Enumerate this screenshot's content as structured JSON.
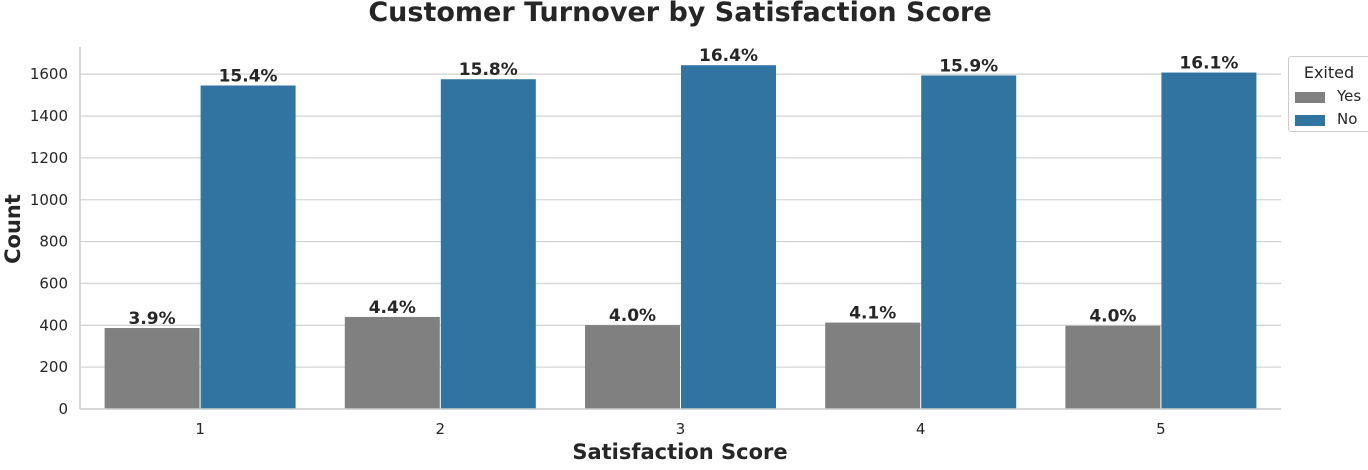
{
  "chart_data": {
    "type": "bar",
    "title": "Customer Turnover by Satisfaction Score",
    "xlabel": "Satisfaction Score",
    "ylabel": "Count",
    "categories": [
      "1",
      "2",
      "3",
      "4",
      "5"
    ],
    "ylim": [
      0,
      1730
    ],
    "yticks": [
      0,
      200,
      400,
      600,
      800,
      1000,
      1200,
      1400,
      1600
    ],
    "grid": true,
    "legend": {
      "title": "Exited",
      "placement": "top-right"
    },
    "series": [
      {
        "name": "Yes",
        "color": "#808080",
        "values": [
          387,
          440,
          401,
          413,
          398
        ],
        "labels": [
          "3.9%",
          "4.4%",
          "4.0%",
          "4.1%",
          "4.0%"
        ]
      },
      {
        "name": "No",
        "color": "#3274a1",
        "values": [
          1546,
          1576,
          1643,
          1594,
          1608
        ],
        "labels": [
          "15.4%",
          "15.8%",
          "16.4%",
          "15.9%",
          "16.1%"
        ]
      }
    ]
  }
}
